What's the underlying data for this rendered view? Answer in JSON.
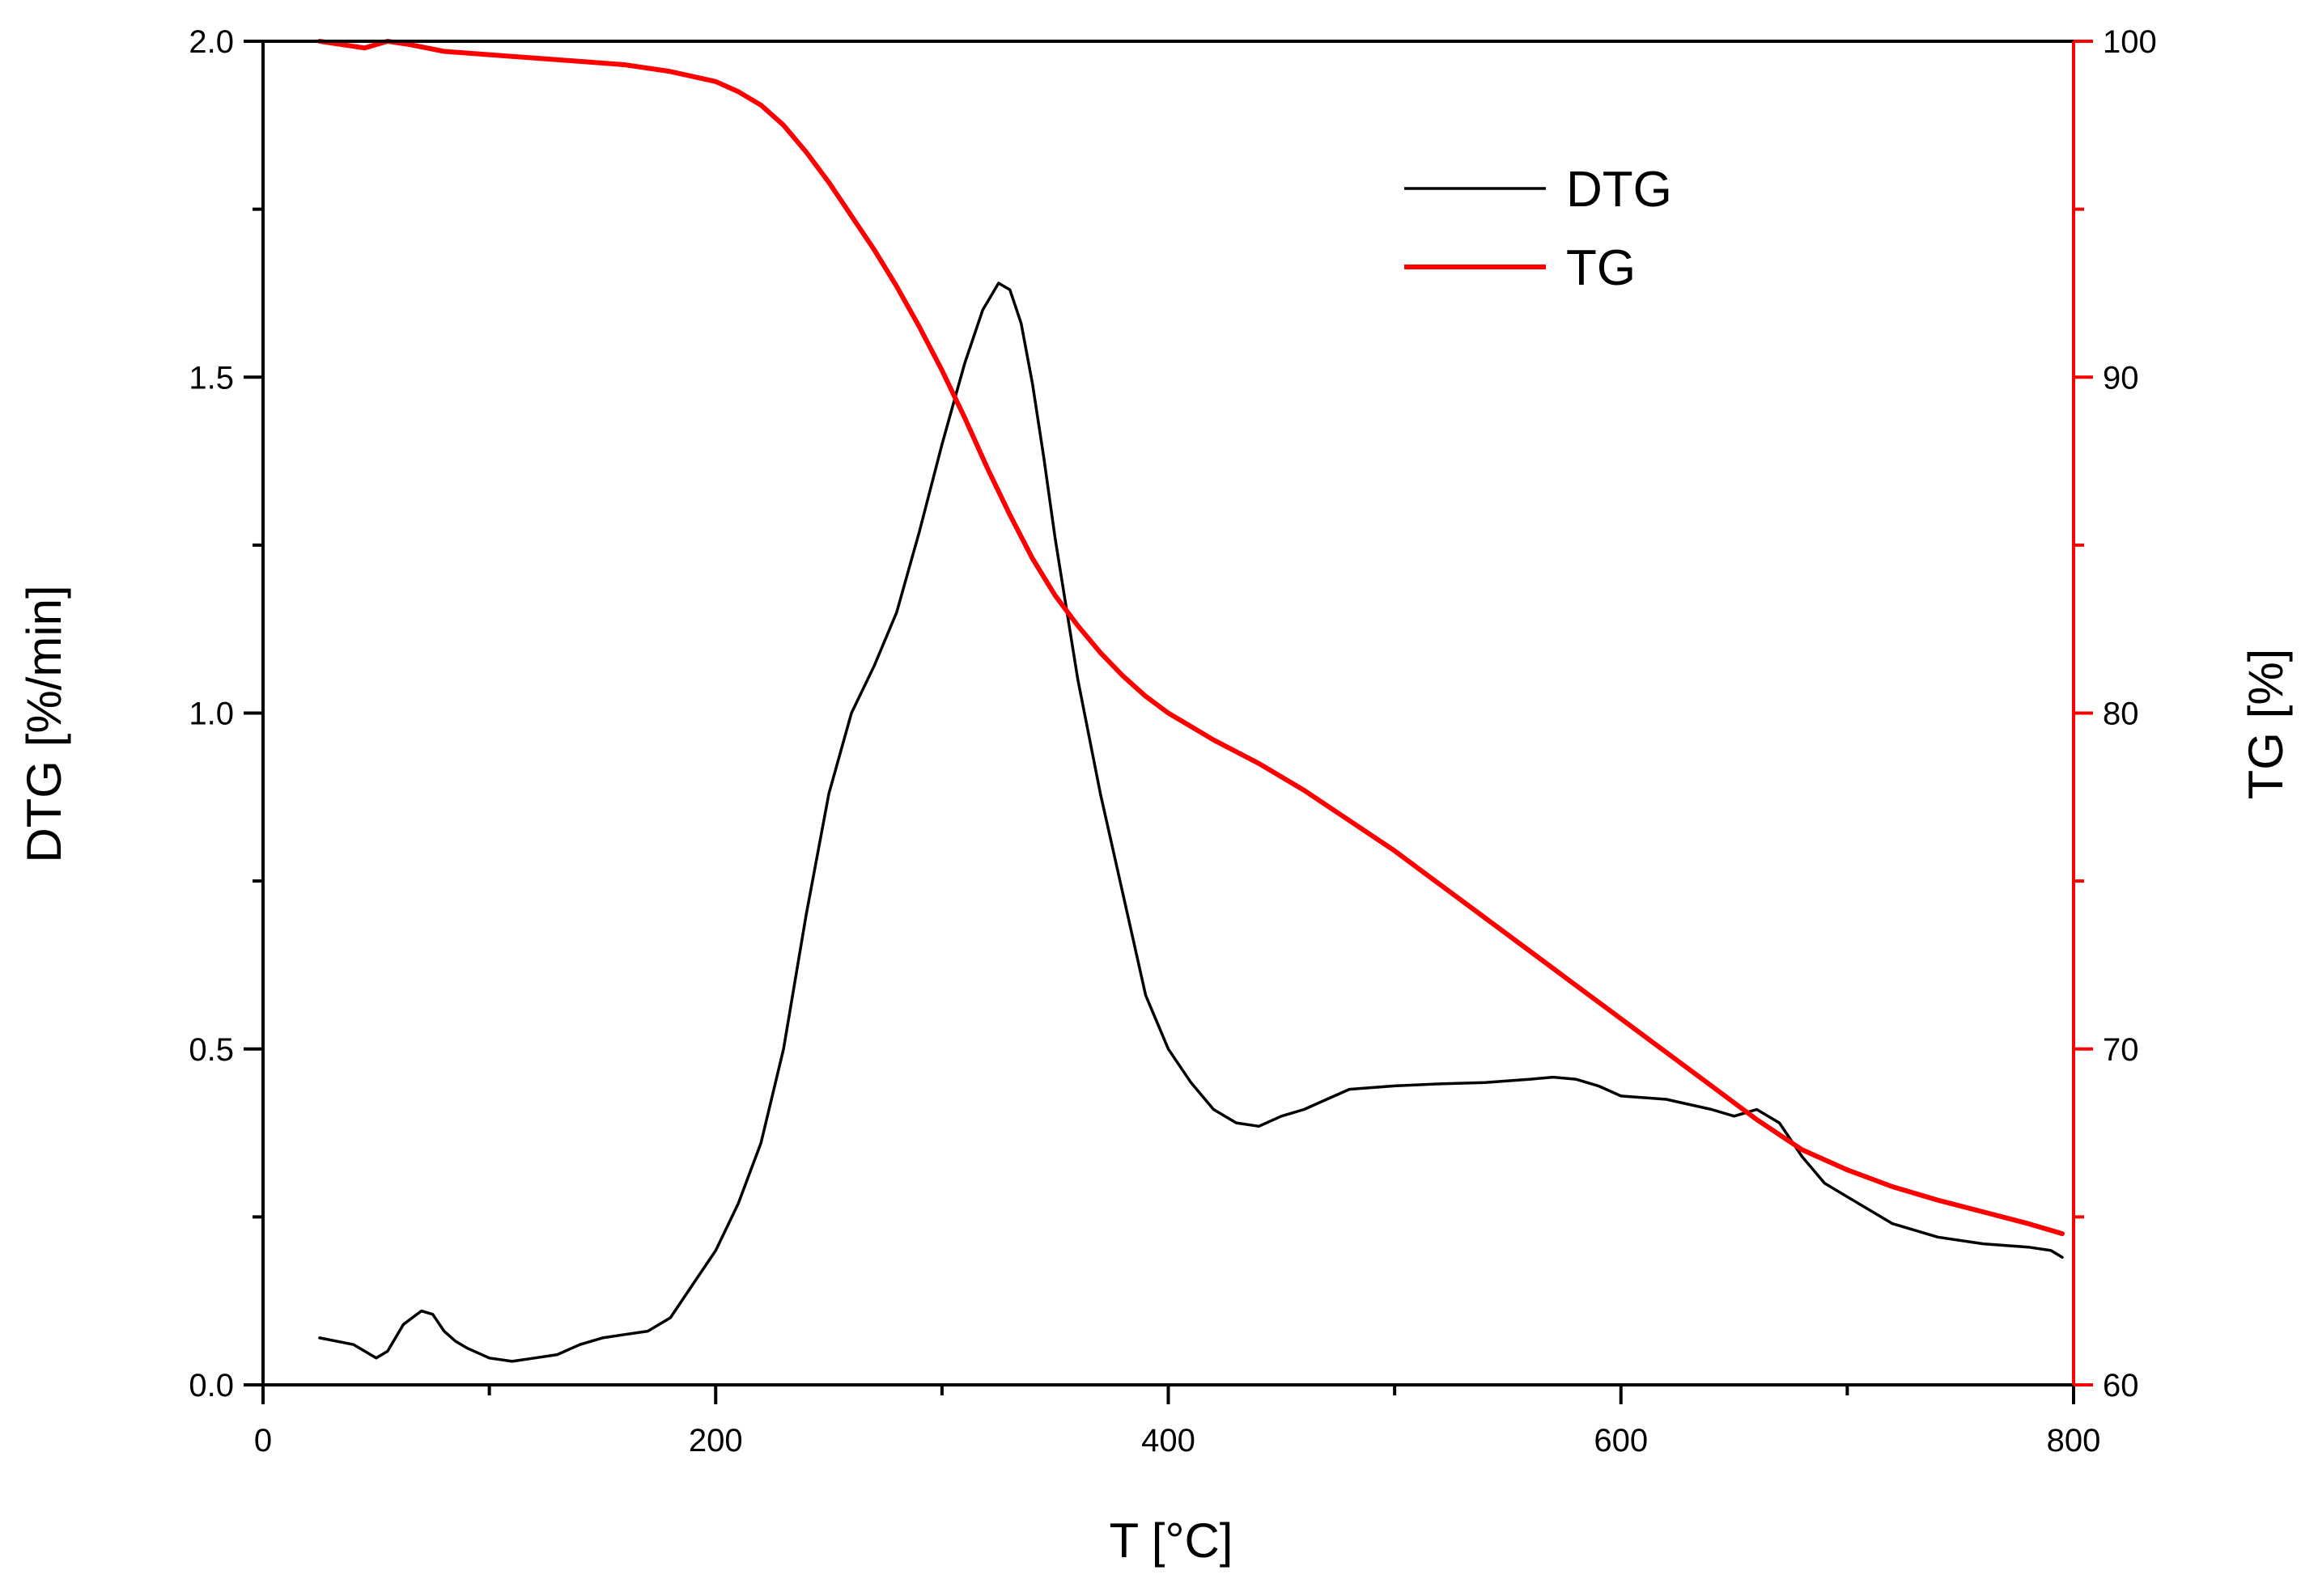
{
  "chart_data": {
    "type": "line",
    "xlabel": "T [°C]",
    "ylabel_left": "DTG [%/min]",
    "ylabel_right": "TG [%]",
    "xlim": [
      0,
      800
    ],
    "ylim_left": [
      0,
      2.0
    ],
    "ylim_right": [
      60,
      100
    ],
    "xticks": [
      0,
      200,
      400,
      600,
      800
    ],
    "xticks_minor": [
      100,
      300,
      500,
      700
    ],
    "yticks_left": [
      0.0,
      0.5,
      1.0,
      1.5,
      2.0
    ],
    "yticks_left_labels": [
      "0.0",
      "0.5",
      "1.0",
      "1.5",
      "2.0"
    ],
    "yticks_left_minor": [
      0.25,
      0.75,
      1.25,
      1.75
    ],
    "yticks_right": [
      60,
      70,
      80,
      90,
      100
    ],
    "yticks_right_labels": [
      "60",
      "70",
      "80",
      "90",
      "100"
    ],
    "yticks_right_minor": [
      65,
      75,
      85,
      95
    ],
    "legend_position": "top-right",
    "series": [
      {
        "name": "DTG",
        "axis": "left",
        "color": "#000000",
        "x": [
          25,
          40,
          50,
          55,
          62,
          70,
          75,
          80,
          85,
          90,
          100,
          110,
          120,
          130,
          140,
          150,
          160,
          170,
          180,
          190,
          200,
          210,
          220,
          230,
          240,
          250,
          260,
          270,
          280,
          290,
          300,
          310,
          318,
          325,
          330,
          335,
          340,
          345,
          350,
          360,
          370,
          380,
          390,
          400,
          410,
          420,
          430,
          440,
          450,
          460,
          470,
          480,
          500,
          520,
          540,
          560,
          570,
          580,
          590,
          600,
          620,
          640,
          650,
          660,
          670,
          680,
          690,
          700,
          720,
          740,
          760,
          780,
          790,
          795
        ],
        "y": [
          0.07,
          0.06,
          0.04,
          0.05,
          0.09,
          0.11,
          0.105,
          0.08,
          0.065,
          0.055,
          0.04,
          0.035,
          0.04,
          0.045,
          0.06,
          0.07,
          0.075,
          0.08,
          0.1,
          0.15,
          0.2,
          0.27,
          0.36,
          0.5,
          0.7,
          0.88,
          1.0,
          1.07,
          1.15,
          1.27,
          1.4,
          1.52,
          1.6,
          1.64,
          1.63,
          1.58,
          1.49,
          1.38,
          1.26,
          1.05,
          0.88,
          0.73,
          0.58,
          0.5,
          0.45,
          0.41,
          0.39,
          0.385,
          0.4,
          0.41,
          0.425,
          0.44,
          0.445,
          0.448,
          0.45,
          0.455,
          0.458,
          0.455,
          0.445,
          0.43,
          0.425,
          0.41,
          0.4,
          0.41,
          0.39,
          0.34,
          0.3,
          0.28,
          0.24,
          0.22,
          0.21,
          0.205,
          0.2,
          0.19
        ]
      },
      {
        "name": "TG",
        "axis": "right",
        "color": "#ff0000",
        "x": [
          25,
          35,
          45,
          55,
          65,
          80,
          100,
          120,
          140,
          160,
          180,
          200,
          210,
          220,
          230,
          240,
          250,
          260,
          270,
          280,
          290,
          300,
          310,
          320,
          330,
          340,
          350,
          360,
          370,
          380,
          390,
          400,
          410,
          420,
          440,
          460,
          480,
          500,
          520,
          540,
          560,
          580,
          600,
          620,
          640,
          660,
          680,
          700,
          720,
          740,
          760,
          780,
          795
        ],
        "y": [
          100.0,
          99.9,
          99.8,
          100.0,
          99.9,
          99.7,
          99.6,
          99.5,
          99.4,
          99.3,
          99.1,
          98.8,
          98.5,
          98.1,
          97.5,
          96.7,
          95.8,
          94.8,
          93.8,
          92.7,
          91.5,
          90.2,
          88.8,
          87.3,
          85.9,
          84.6,
          83.5,
          82.6,
          81.8,
          81.1,
          80.5,
          80.0,
          79.6,
          79.2,
          78.5,
          77.7,
          76.8,
          75.9,
          74.9,
          73.9,
          72.9,
          71.9,
          70.9,
          69.9,
          68.9,
          67.9,
          67.0,
          66.4,
          65.9,
          65.5,
          65.15,
          64.8,
          64.5
        ]
      }
    ]
  }
}
